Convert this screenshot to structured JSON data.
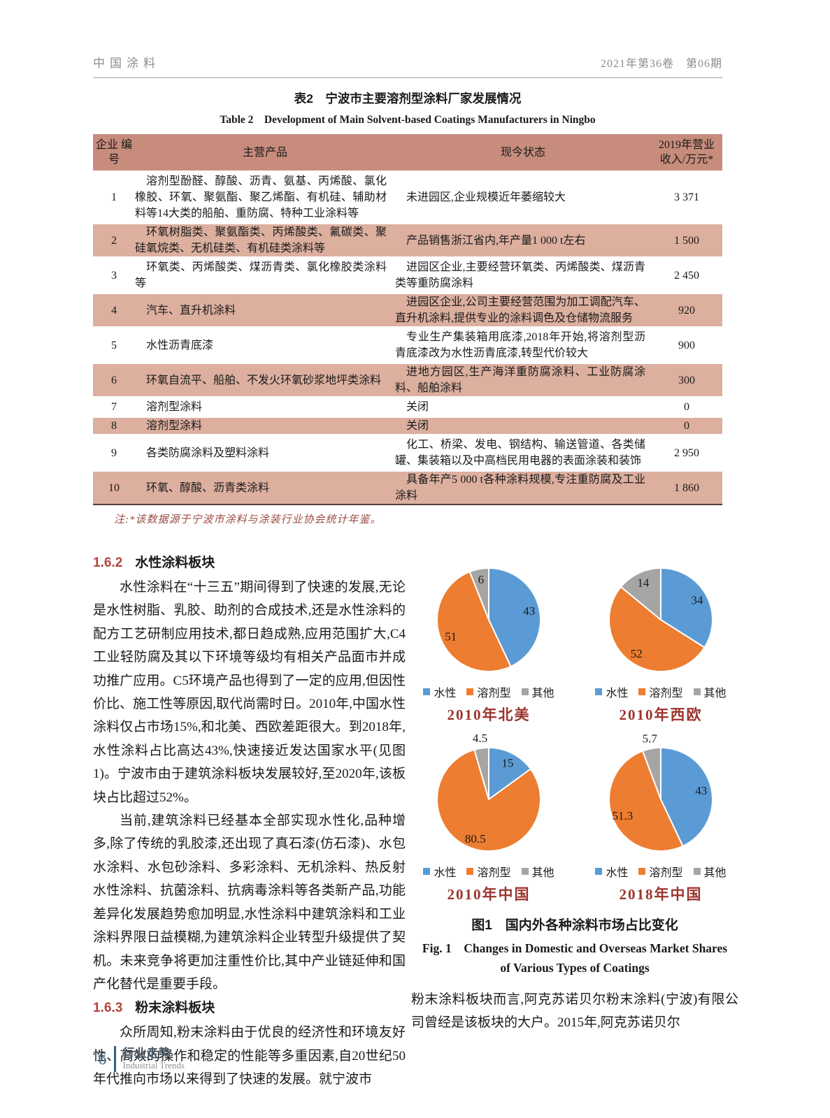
{
  "page": {
    "header": {
      "journal": "中国涂料",
      "issue": "2021年第36卷　第06期"
    },
    "footer": {
      "page_number": "6",
      "section_zh": "行业走势",
      "section_en": "Industrial Trends"
    }
  },
  "colors": {
    "accent_red": "#b5443c",
    "note_red": "#9c4a41",
    "figure_title_red": "#9c332e",
    "table_header_bg": "#c78c7c",
    "table_row_bg": "#dcaf9f",
    "footer_blue": "#2e5f8a",
    "pie_blue": "#5b9bd5",
    "pie_orange": "#ed7d31",
    "pie_gray": "#a5a5a5"
  },
  "table": {
    "title_zh": "表2　宁波市主要溶剂型涂料厂家发展情况",
    "title_en": "Table 2　Development of Main Solvent-based Coatings Manufacturers in Ningbo",
    "columns": [
      "企业 编号",
      "主营产品",
      "现今状态",
      "2019年营业 收入/万元*"
    ],
    "rows": [
      {
        "id": "1",
        "products": "溶剂型酚醛、醇酸、沥青、氨基、丙烯酸、氯化橡胶、环氧、聚氨酯、聚乙烯酯、有机硅、辅助材料等14大类的船舶、重防腐、特种工业涂料等",
        "status": "未进园区,企业规模近年萎缩较大",
        "revenue": "3 371"
      },
      {
        "id": "2",
        "products": "环氧树脂类、聚氨酯类、丙烯酸类、氟碳类、聚硅氧烷类、无机硅类、有机硅类涂料等",
        "status": "产品销售浙江省内,年产量1 000 t左右",
        "revenue": "1 500"
      },
      {
        "id": "3",
        "products": "环氧类、丙烯酸类、煤沥青类、氯化橡胶类涂料等",
        "status": "进园区企业,主要经营环氧类、丙烯酸类、煤沥青类等重防腐涂料",
        "revenue": "2 450"
      },
      {
        "id": "4",
        "products": "汽车、直升机涂料",
        "status": "进园区企业,公司主要经营范围为加工调配汽车、直升机涂料,提供专业的涂料调色及仓储物流服务",
        "revenue": "920"
      },
      {
        "id": "5",
        "products": "水性沥青底漆",
        "status": "专业生产集装箱用底漆,2018年开始,将溶剂型沥青底漆改为水性沥青底漆,转型代价较大",
        "revenue": "900"
      },
      {
        "id": "6",
        "products": "环氧自流平、船舶、不发火环氧砂浆地坪类涂料",
        "status": "进地方园区,生产海洋重防腐涂料、工业防腐涂料、船舶涂料",
        "revenue": "300"
      },
      {
        "id": "7",
        "products": "溶剂型涂料",
        "status": "关闭",
        "revenue": "0"
      },
      {
        "id": "8",
        "products": "溶剂型涂料",
        "status": "关闭",
        "revenue": "0"
      },
      {
        "id": "9",
        "products": "各类防腐涂料及塑料涂料",
        "status": "化工、桥梁、发电、钢结构、输送管道、各类储罐、集装箱以及中高档民用电器的表面涂装和装饰",
        "revenue": "2 950"
      },
      {
        "id": "10",
        "products": "环氧、醇酸、沥青类涂料",
        "status": "具备年产5 000 t各种涂料规模,专注重防腐及工业涂料",
        "revenue": "1 860"
      }
    ],
    "note": "注:*该数据源于宁波市涂料与涂装行业协会统计年鉴。"
  },
  "sections": [
    {
      "number": "1.6.2",
      "title": "水性涂料板块",
      "paragraphs": [
        "水性涂料在“十三五”期间得到了快速的发展,无论是水性树脂、乳胶、助剂的合成技术,还是水性涂料的配方工艺研制应用技术,都日趋成熟,应用范围扩大,C4工业轻防腐及其以下环境等级均有相关产品面市并成功推广应用。C5环境产品也得到了一定的应用,但因性价比、施工性等原因,取代尚需时日。2010年,中国水性涂料仅占市场15%,和北美、西欧差距很大。到2018年,水性涂料占比高达43%,快速接近发达国家水平(见图1)。宁波市由于建筑涂料板块发展较好,至2020年,该板块占比超过52%。",
        "当前,建筑涂料已经基本全部实现水性化,品种增多,除了传统的乳胶漆,还出现了真石漆(仿石漆)、水包水涂料、水包砂涂料、多彩涂料、无机涂料、热反射水性涂料、抗菌涂料、抗病毒涂料等各类新产品,功能差异化发展趋势愈加明显,水性涂料中建筑涂料和工业涂料界限日益模糊,为建筑涂料企业转型升级提供了契机。未来竞争将更加注重性价比,其中产业链延伸和国产化替代是重要手段。"
      ]
    },
    {
      "number": "1.6.3",
      "title": "粉末涂料板块",
      "paragraphs": [
        "众所周知,粉末涂料由于优良的经济性和环境友好性、高效的操作和稳定的性能等多重因素,自20世纪50年代推向市场以来得到了快速的发展。就宁波市"
      ]
    }
  ],
  "figure": {
    "caption_zh": "图1　国内外各种涂料市场占比变化",
    "caption_en_line1": "Fig. 1　Changes in Domestic and Overseas Market Shares",
    "caption_en_line2": "of Various Types of Coatings"
  },
  "continuation_paragraph": "粉末涂料板块而言,阿克苏诺贝尔粉末涂料(宁波)有限公司曾经是该板块的大户。2015年,阿克苏诺贝尔",
  "chart_data": [
    {
      "type": "pie",
      "title": "2010年北美",
      "categories": [
        "水性",
        "溶剂型",
        "其他"
      ],
      "values": [
        43,
        51,
        6
      ],
      "colors": [
        "#5b9bd5",
        "#ed7d31",
        "#a5a5a5"
      ],
      "value_label_placement": [
        "inside",
        "inside",
        "inside"
      ],
      "legend_position": "bottom",
      "start_angle_deg": 0,
      "direction": "clockwise"
    },
    {
      "type": "pie",
      "title": "2010年西欧",
      "categories": [
        "水性",
        "溶剂型",
        "其他"
      ],
      "values": [
        34,
        52,
        14
      ],
      "colors": [
        "#5b9bd5",
        "#ed7d31",
        "#a5a5a5"
      ],
      "value_label_placement": [
        "inside",
        "inside",
        "inside"
      ],
      "legend_position": "bottom",
      "start_angle_deg": 0,
      "direction": "clockwise"
    },
    {
      "type": "pie",
      "title": "2010年中国",
      "categories": [
        "水性",
        "溶剂型",
        "其他"
      ],
      "values": [
        15,
        80.5,
        4.5
      ],
      "colors": [
        "#5b9bd5",
        "#ed7d31",
        "#a5a5a5"
      ],
      "value_label_placement": [
        "inside",
        "inside",
        "outside"
      ],
      "legend_position": "bottom",
      "start_angle_deg": 0,
      "direction": "clockwise"
    },
    {
      "type": "pie",
      "title": "2018年中国",
      "categories": [
        "水性",
        "溶剂型",
        "其他"
      ],
      "values": [
        43,
        51.3,
        5.7
      ],
      "colors": [
        "#5b9bd5",
        "#ed7d31",
        "#a5a5a5"
      ],
      "value_label_placement": [
        "inside",
        "inside",
        "outside"
      ],
      "legend_position": "bottom",
      "start_angle_deg": 0,
      "direction": "clockwise"
    }
  ]
}
